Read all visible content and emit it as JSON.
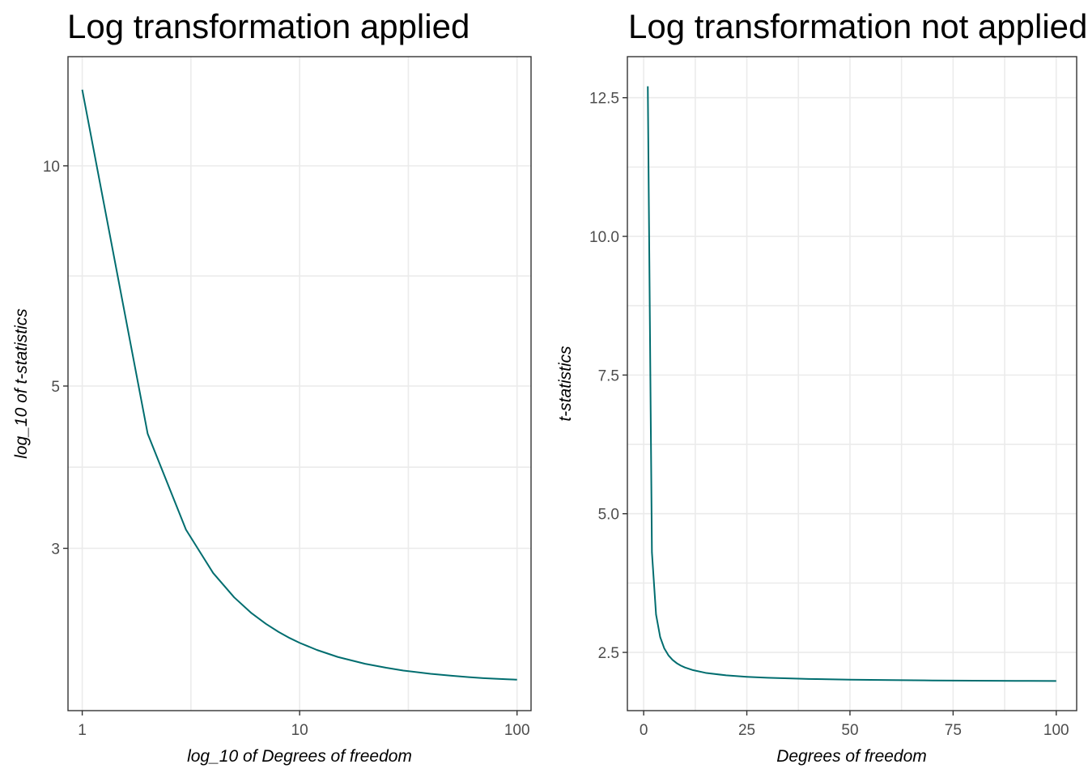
{
  "colors": {
    "line": "#006d6f",
    "grid": "#ebebeb",
    "border": "#333333",
    "tick_text": "#4d4d4d"
  },
  "chart_data": [
    {
      "type": "line",
      "title": "Log transformation applied",
      "xlabel": "log_10 of Degrees of freedom",
      "ylabel": "log_10 of t-statistics",
      "xscale": "log10",
      "yscale": "log10",
      "xlim": [
        0.86,
        116
      ],
      "ylim": [
        1.8,
        14.1
      ],
      "xticks": [
        1,
        10,
        100
      ],
      "xtick_labels": [
        "1",
        "10",
        "100"
      ],
      "yticks": [
        3,
        5,
        10
      ],
      "ytick_labels": [
        "3",
        "5",
        "10"
      ],
      "grid": true,
      "x": [
        1,
        2,
        3,
        4,
        5,
        6,
        7,
        8,
        9,
        10,
        12,
        15,
        20,
        25,
        30,
        40,
        50,
        60,
        70,
        80,
        90,
        100
      ],
      "y": [
        12.706,
        4.303,
        3.182,
        2.776,
        2.571,
        2.447,
        2.365,
        2.306,
        2.262,
        2.228,
        2.179,
        2.131,
        2.086,
        2.06,
        2.042,
        2.021,
        2.009,
        2.0,
        1.994,
        1.99,
        1.987,
        1.984
      ]
    },
    {
      "type": "line",
      "title": "Log transformation not applied",
      "xlabel": "Degrees of freedom",
      "ylabel": "t-statistics",
      "xscale": "linear",
      "yscale": "linear",
      "xlim": [
        -3.95,
        104.95
      ],
      "ylim": [
        1.45,
        13.24
      ],
      "xticks": [
        0,
        25,
        50,
        75,
        100
      ],
      "xtick_labels": [
        "0",
        "25",
        "50",
        "75",
        "100"
      ],
      "yticks": [
        2.5,
        5.0,
        7.5,
        10.0,
        12.5
      ],
      "ytick_labels": [
        "2.5",
        "5.0",
        "7.5",
        "10.0",
        "12.5"
      ],
      "grid": true,
      "x": [
        1,
        2,
        3,
        4,
        5,
        6,
        7,
        8,
        9,
        10,
        12,
        15,
        20,
        25,
        30,
        40,
        50,
        60,
        70,
        80,
        90,
        100
      ],
      "y": [
        12.706,
        4.303,
        3.182,
        2.776,
        2.571,
        2.447,
        2.365,
        2.306,
        2.262,
        2.228,
        2.179,
        2.131,
        2.086,
        2.06,
        2.042,
        2.021,
        2.009,
        2.0,
        1.994,
        1.99,
        1.987,
        1.984
      ]
    }
  ]
}
